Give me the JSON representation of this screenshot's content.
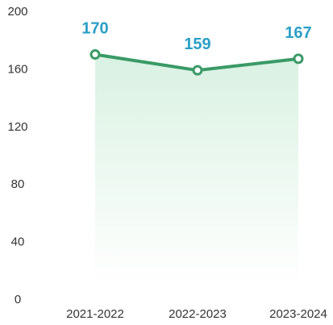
{
  "chart_data": {
    "type": "area",
    "categories": [
      "2021-2022",
      "2022-2023",
      "2023-2024"
    ],
    "series": [
      {
        "values": [
          170,
          159,
          167
        ]
      }
    ],
    "data_labels": [
      "170",
      "159",
      "167"
    ],
    "y_ticks": [
      "0",
      "40",
      "80",
      "120",
      "160",
      "200"
    ],
    "ylim": [
      0,
      200
    ],
    "grid": false,
    "legend": "none",
    "colors": {
      "line": "#3a9a66",
      "fill_top": "#d9f1e2",
      "fill_bottom": "#ffffff",
      "marker_fill": "#ffffff",
      "data_label": "#2a9fc6",
      "tick_text": "#333333"
    }
  }
}
